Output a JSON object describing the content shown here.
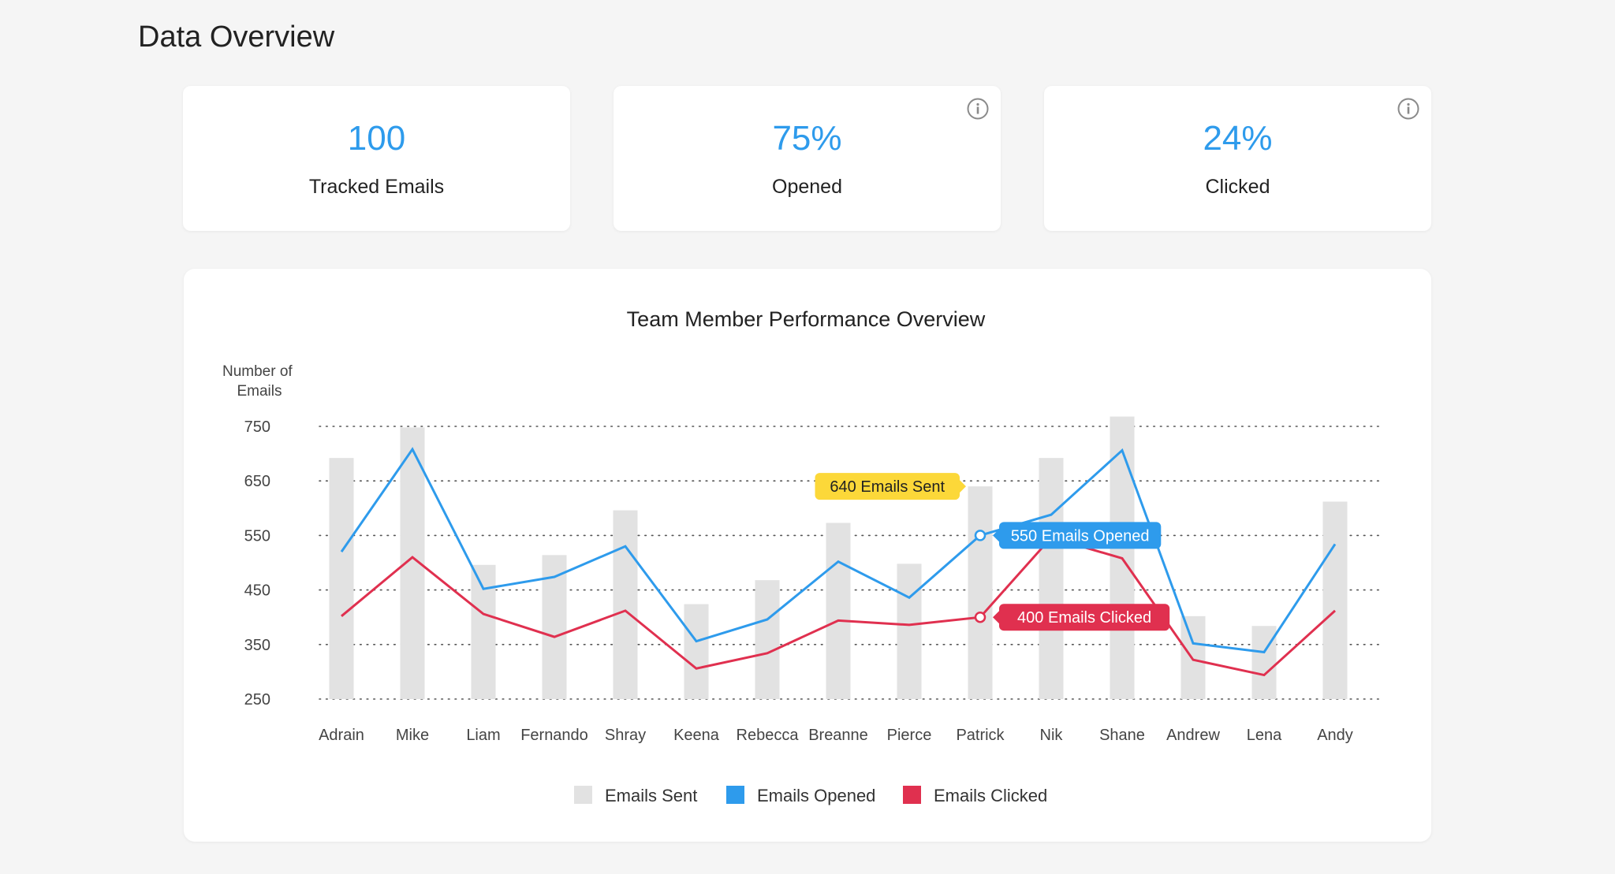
{
  "page": {
    "title": "Data Overview"
  },
  "stats": [
    {
      "value": "100",
      "label": "Tracked Emails",
      "info": false
    },
    {
      "value": "75%",
      "label": "Opened",
      "info": true
    },
    {
      "value": "24%",
      "label": "Clicked",
      "info": true
    }
  ],
  "colors": {
    "accent": "#2e9bec",
    "sent": "#e2e2e2",
    "opened": "#2e9bec",
    "clicked": "#e0304f",
    "tooltip_sent": "#fcd839"
  },
  "chart_data": {
    "type": "bar",
    "title": "Team Member Performance Overview",
    "ylabel_lines": [
      "Number of",
      "Emails"
    ],
    "xlabel": "",
    "ylim": [
      250,
      750
    ],
    "yticks": [
      250,
      350,
      450,
      550,
      650,
      750
    ],
    "grid": "horizontal-dotted",
    "legend_position": "bottom-center",
    "categories": [
      "Adrain",
      "Mike",
      "Liam",
      "Fernando",
      "Shray",
      "Keena",
      "Rebecca",
      "Breanne",
      "Pierce",
      "Patrick",
      "Nik",
      "Shane",
      "Andrew",
      "Lena",
      "Andy"
    ],
    "series": [
      {
        "name": "Emails Sent",
        "type": "bar",
        "values": [
          692,
          748,
          496,
          514,
          596,
          424,
          468,
          573,
          498,
          640,
          692,
          768,
          402,
          384,
          612
        ]
      },
      {
        "name": "Emails Opened",
        "type": "line",
        "values": [
          520,
          708,
          452,
          474,
          530,
          356,
          396,
          502,
          436,
          550,
          588,
          706,
          352,
          336,
          534
        ]
      },
      {
        "name": "Emails Clicked",
        "type": "line",
        "values": [
          402,
          510,
          406,
          364,
          412,
          306,
          334,
          394,
          386,
          400,
          546,
          508,
          322,
          294,
          412
        ]
      }
    ],
    "annotations": [
      {
        "text": "640 Emails Sent",
        "series": 0,
        "index": 9
      },
      {
        "text": "550 Emails Opened",
        "series": 1,
        "index": 9
      },
      {
        "text": "400 Emails Clicked",
        "series": 2,
        "index": 9
      }
    ]
  }
}
